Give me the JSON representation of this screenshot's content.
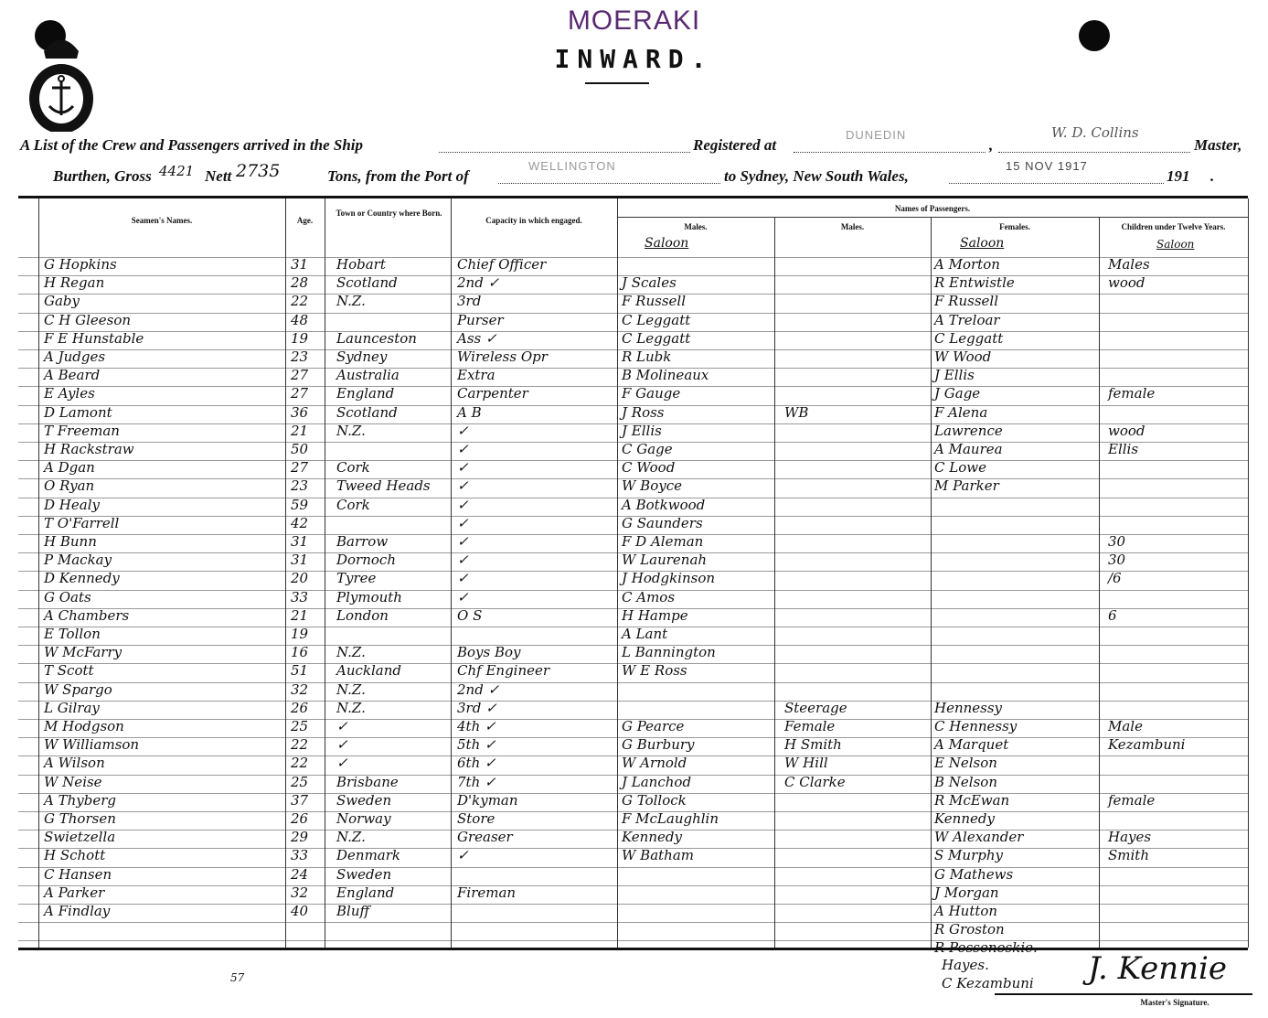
{
  "header": {
    "ship_title": "MOERAKI",
    "direction": "INWARD.",
    "line1_prefix": "A List of the Crew and Passengers arrived in the Ship",
    "registered_label": "Registered at",
    "registered_value": "DUNEDIN",
    "master_value": "W. D. Collins",
    "master_label": "Master,",
    "burthen_label": "Burthen, Gross",
    "gross_value": "4421",
    "nett_label": "Nett",
    "nett_value": "2735",
    "tons_label": "Tons, from the Port of",
    "port_value": "WELLINGTON",
    "to_label": "to Sydney, New South Wales,",
    "date_value": "15 NOV 1917",
    "year_label": "191",
    "period": "."
  },
  "columns": {
    "seamen_names": "Seamen's Names.",
    "age": "Age.",
    "born": "Town or Country where Born.",
    "capacity": "Capacity in which engaged.",
    "passengers": "Names of Passengers.",
    "males": "Males.",
    "males2": "Males.",
    "females": "Females.",
    "children": "Children under Twelve Years.",
    "saloon": "Saloon",
    "saloon_f": "Saloon",
    "saloon_c": "Saloon"
  },
  "rows": [
    {
      "name": "G Hopkins",
      "age": "31",
      "born": "Hobart",
      "capacity": "Chief Officer",
      "saloon_male": "",
      "steerage": "",
      "female": "A Morton",
      "child": "Males"
    },
    {
      "name": "H Regan",
      "age": "28",
      "born": "Scotland",
      "capacity": "2nd ✓",
      "saloon_male": "J Scales",
      "steerage": "",
      "female": "R Entwistle",
      "child": "wood"
    },
    {
      "name": "Gaby",
      "age": "22",
      "born": "N.Z.",
      "capacity": "3rd",
      "saloon_male": "F Russell",
      "steerage": "",
      "female": "F Russell",
      "child": ""
    },
    {
      "name": "C H Gleeson",
      "age": "48",
      "born": "",
      "capacity": "Purser",
      "saloon_male": "C Leggatt",
      "steerage": "",
      "female": "A Treloar",
      "child": ""
    },
    {
      "name": "F E Hunstable",
      "age": "19",
      "born": "Launceston",
      "capacity": "Ass ✓",
      "saloon_male": "C Leggatt",
      "steerage": "",
      "female": "C Leggatt",
      "child": ""
    },
    {
      "name": "A Judges",
      "age": "23",
      "born": "Sydney",
      "capacity": "Wireless Opr",
      "saloon_male": "R Lubk",
      "steerage": "",
      "female": "W Wood",
      "child": ""
    },
    {
      "name": "A Beard",
      "age": "27",
      "born": "Australia",
      "capacity": "Extra",
      "saloon_male": "B Molineaux",
      "steerage": "",
      "female": "J Ellis",
      "child": ""
    },
    {
      "name": "E Ayles",
      "age": "27",
      "born": "England",
      "capacity": "Carpenter",
      "saloon_male": "F Gauge",
      "steerage": "",
      "female": "J Gage",
      "child": "female"
    },
    {
      "name": "D Lamont",
      "age": "36",
      "born": "Scotland",
      "capacity": "A B",
      "saloon_male": "J Ross",
      "steerage": "WB",
      "female": "F Alena",
      "child": ""
    },
    {
      "name": "T Freeman",
      "age": "21",
      "born": "N.Z.",
      "capacity": "✓",
      "saloon_male": "J Ellis",
      "steerage": "",
      "female": "Lawrence",
      "child": "wood"
    },
    {
      "name": "H Rackstraw",
      "age": "50",
      "born": "",
      "capacity": "✓",
      "saloon_male": "C Gage",
      "steerage": "",
      "female": "A Maurea",
      "child": "Ellis"
    },
    {
      "name": "A Dgan",
      "age": "27",
      "born": "Cork",
      "capacity": "✓",
      "saloon_male": "C Wood",
      "steerage": "",
      "female": "C Lowe",
      "child": ""
    },
    {
      "name": "O Ryan",
      "age": "23",
      "born": "Tweed Heads",
      "capacity": "✓",
      "saloon_male": "W Boyce",
      "steerage": "",
      "female": "M Parker",
      "child": ""
    },
    {
      "name": "D Healy",
      "age": "59",
      "born": "Cork",
      "capacity": "✓",
      "saloon_male": "A Botkwood",
      "steerage": "",
      "female": "",
      "child": ""
    },
    {
      "name": "T O'Farrell",
      "age": "42",
      "born": "",
      "capacity": "✓",
      "saloon_male": "G Saunders",
      "steerage": "",
      "female": "",
      "child": ""
    },
    {
      "name": "H Bunn",
      "age": "31",
      "born": "Barrow",
      "capacity": "✓",
      "saloon_male": "F D Aleman",
      "steerage": "",
      "female": "",
      "child": "30"
    },
    {
      "name": "P Mackay",
      "age": "31",
      "born": "Dornoch",
      "capacity": "✓",
      "saloon_male": "W Laurenah",
      "steerage": "",
      "female": "",
      "child": "30"
    },
    {
      "name": "D Kennedy",
      "age": "20",
      "born": "Tyree",
      "capacity": "✓",
      "saloon_male": "J Hodgkinson",
      "steerage": "",
      "female": "",
      "child": "/6"
    },
    {
      "name": "G Oats",
      "age": "33",
      "born": "Plymouth",
      "capacity": "✓",
      "saloon_male": "C Amos",
      "steerage": "",
      "female": "",
      "child": ""
    },
    {
      "name": "A Chambers",
      "age": "21",
      "born": "London",
      "capacity": "O S",
      "saloon_male": "H Hampe",
      "steerage": "",
      "female": "",
      "child": "6"
    },
    {
      "name": "E Tollon",
      "age": "19",
      "born": "",
      "capacity": "",
      "saloon_male": "A Lant",
      "steerage": "",
      "female": "",
      "child": ""
    },
    {
      "name": "W McFarry",
      "age": "16",
      "born": "N.Z.",
      "capacity": "Boys Boy",
      "saloon_male": "L Bannington",
      "steerage": "",
      "female": "",
      "child": ""
    },
    {
      "name": "T Scott",
      "age": "51",
      "born": "Auckland",
      "capacity": "Chf Engineer",
      "saloon_male": "W E Ross",
      "steerage": "",
      "female": "",
      "child": ""
    },
    {
      "name": "W Spargo",
      "age": "32",
      "born": "N.Z.",
      "capacity": "2nd ✓",
      "saloon_male": "",
      "steerage": "",
      "female": "",
      "child": ""
    },
    {
      "name": "L Gilray",
      "age": "26",
      "born": "N.Z.",
      "capacity": "3rd ✓",
      "saloon_male": "",
      "steerage": "Steerage",
      "female": "Hennessy",
      "child": ""
    },
    {
      "name": "M Hodgson",
      "age": "25",
      "born": "✓",
      "capacity": "4th ✓",
      "saloon_male": "G Pearce",
      "steerage": "Female",
      "female": "C Hennessy",
      "child": "Male"
    },
    {
      "name": "W Williamson",
      "age": "22",
      "born": "✓",
      "capacity": "5th ✓",
      "saloon_male": "G Burbury",
      "steerage": "H Smith",
      "female": "A Marquet",
      "child": "Kezambuni"
    },
    {
      "name": "A Wilson",
      "age": "22",
      "born": "✓",
      "capacity": "6th ✓",
      "saloon_male": "W Arnold",
      "steerage": "W Hill",
      "female": "E Nelson",
      "child": ""
    },
    {
      "name": "W Neise",
      "age": "25",
      "born": "Brisbane",
      "capacity": "7th ✓",
      "saloon_male": "J Lanchod",
      "steerage": "C Clarke",
      "female": "B Nelson",
      "child": ""
    },
    {
      "name": "A Thyberg",
      "age": "37",
      "born": "Sweden",
      "capacity": "D'kyman",
      "saloon_male": "G Tollock",
      "steerage": "",
      "female": "R McEwan",
      "child": "female"
    },
    {
      "name": "G Thorsen",
      "age": "26",
      "born": "Norway",
      "capacity": "Store",
      "saloon_male": "F McLaughlin",
      "steerage": "",
      "female": "Kennedy",
      "child": ""
    },
    {
      "name": "Swietzella",
      "age": "29",
      "born": "N.Z.",
      "capacity": "Greaser",
      "saloon_male": "Kennedy",
      "steerage": "",
      "female": "W Alexander",
      "child": "Hayes"
    },
    {
      "name": "H Schott",
      "age": "33",
      "born": "Denmark",
      "capacity": "✓",
      "saloon_male": "W Batham",
      "steerage": "",
      "female": "S Murphy",
      "child": "Smith"
    },
    {
      "name": "C Hansen",
      "age": "24",
      "born": "Sweden",
      "capacity": "",
      "saloon_male": "",
      "steerage": "",
      "female": "G Mathews",
      "child": ""
    },
    {
      "name": "A Parker",
      "age": "32",
      "born": "England",
      "capacity": "Fireman",
      "saloon_male": "",
      "steerage": "",
      "female": "J Morgan",
      "child": ""
    },
    {
      "name": "A Findlay",
      "age": "40",
      "born": "Bluff",
      "capacity": "",
      "saloon_male": "",
      "steerage": "",
      "female": "A Hutton",
      "child": ""
    },
    {
      "name": "",
      "age": "",
      "born": "",
      "capacity": "",
      "saloon_male": "",
      "steerage": "",
      "female": "R Groston",
      "child": ""
    },
    {
      "name": "",
      "age": "",
      "born": "",
      "capacity": "",
      "saloon_male": "",
      "steerage": "",
      "female": "R Possenoskie.",
      "child": ""
    }
  ],
  "footer": {
    "extra_females": [
      "Hayes.",
      "C Kezambuni"
    ],
    "signature": "J. Kennie",
    "signature_label": "Master's Signature.",
    "page_number": "57"
  }
}
